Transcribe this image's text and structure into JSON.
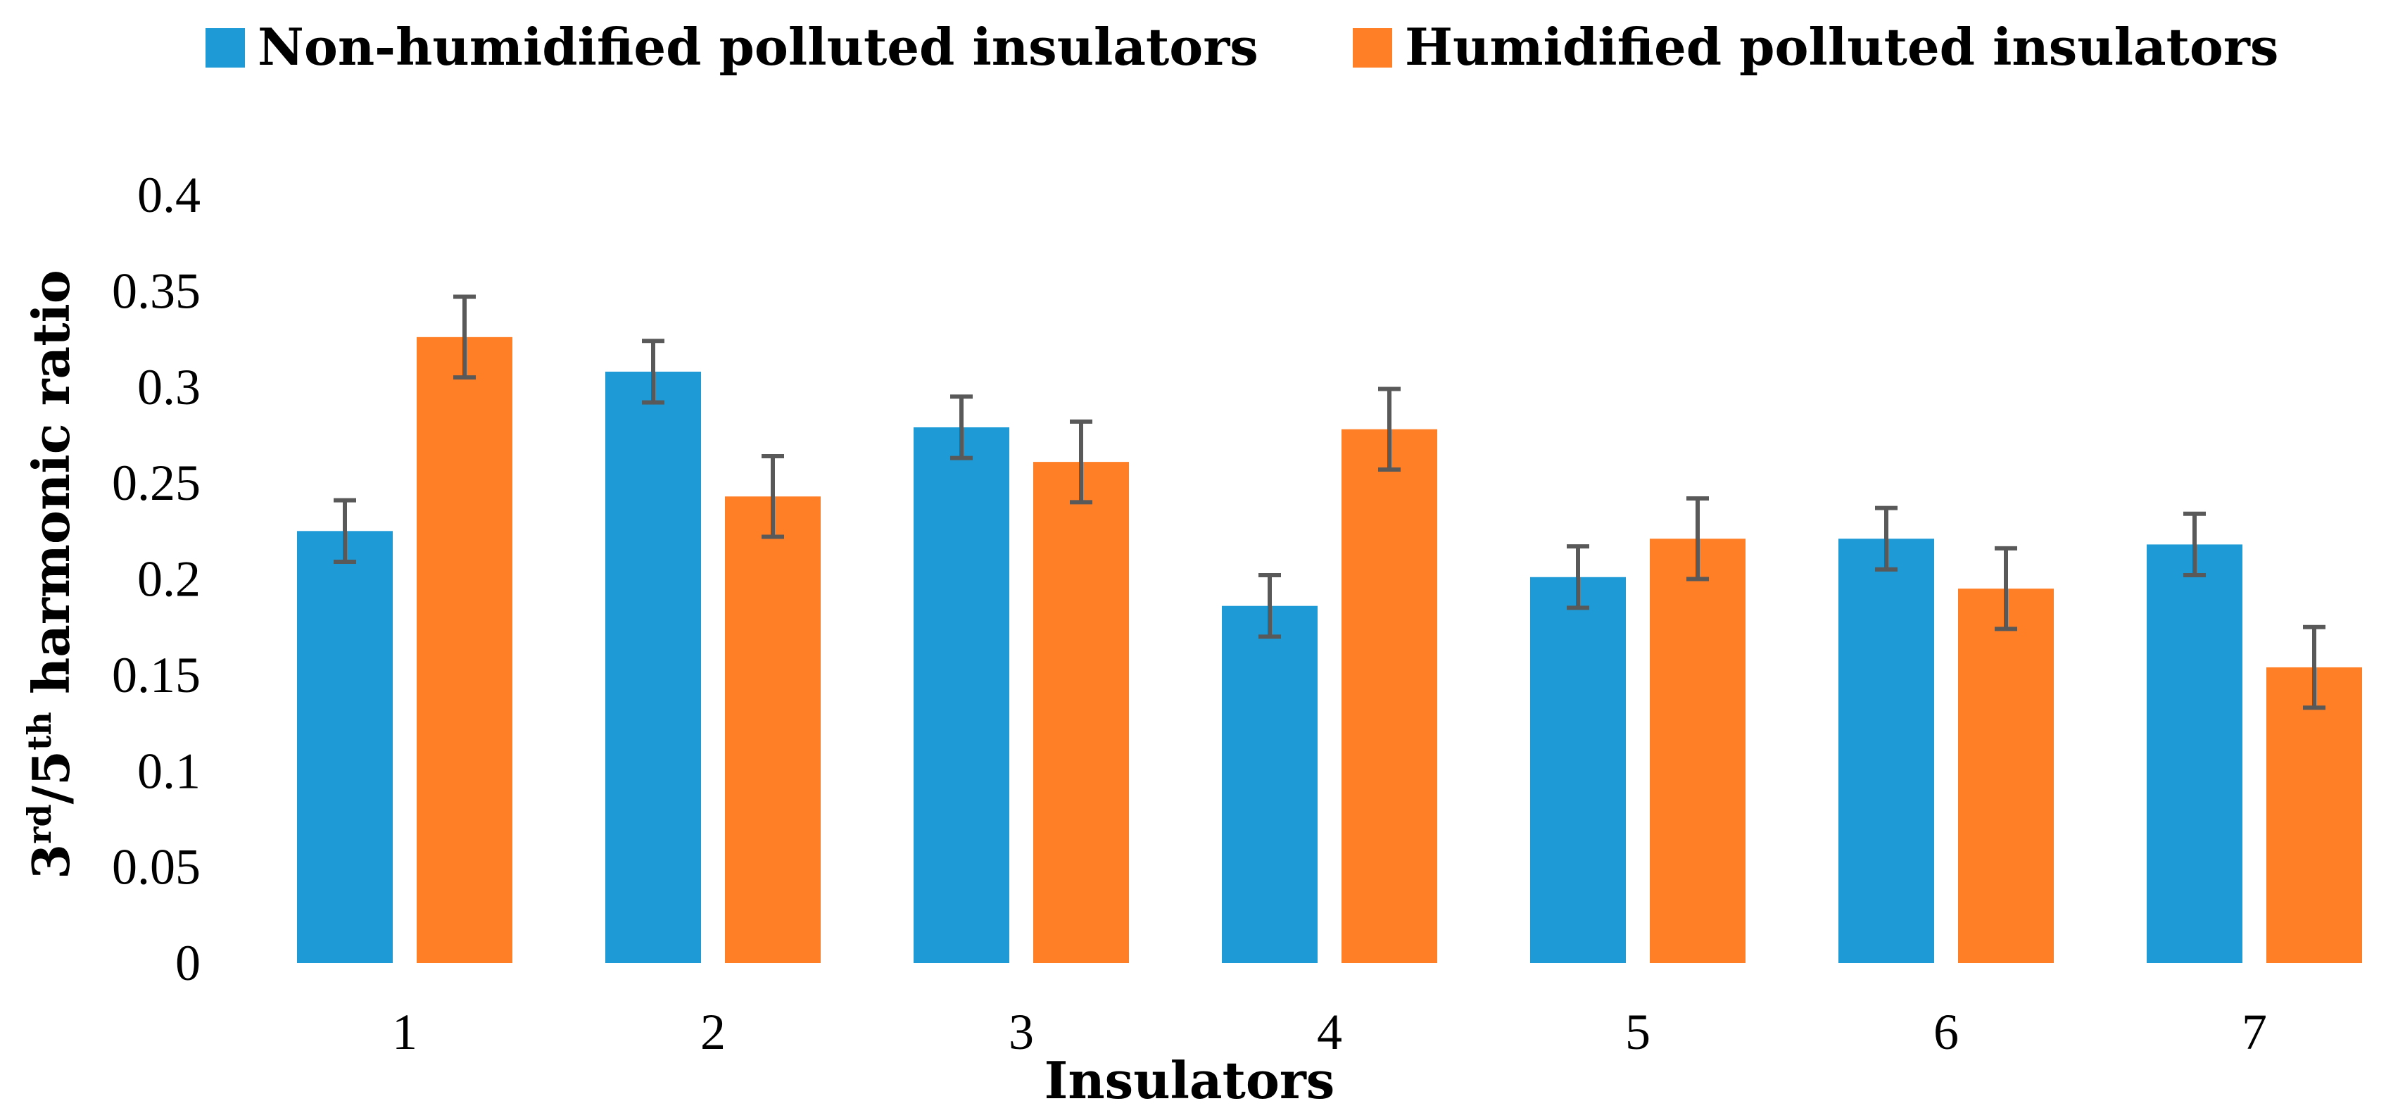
{
  "chart_data": {
    "type": "bar",
    "title": "",
    "xlabel": "Insulators",
    "ylabel": {
      "prefix": "3",
      "sup1": "rd",
      "middle": "/5",
      "sup2": "th",
      "suffix": " harmonic ratio"
    },
    "ylim": [
      0,
      0.4
    ],
    "yticks": [
      0,
      0.05,
      0.1,
      0.15,
      0.2,
      0.25,
      0.3,
      0.35,
      0.4
    ],
    "ytick_labels": [
      "0",
      "0.05",
      "0.1",
      "0.15",
      "0.2",
      "0.25",
      "0.3",
      "0.35",
      "0.4"
    ],
    "grid": false,
    "legend_position": "top-center",
    "categories": [
      "1",
      "2",
      "3",
      "4",
      "5",
      "6",
      "7"
    ],
    "series": [
      {
        "name": "Non-humidified polluted insulators",
        "color": "#1E9BD7",
        "values": [
          0.225,
          0.308,
          0.279,
          0.186,
          0.201,
          0.221,
          0.218
        ],
        "errors": [
          0.016,
          0.016,
          0.016,
          0.016,
          0.016,
          0.016,
          0.016
        ]
      },
      {
        "name": "Humidified polluted insulators",
        "color": "#FF7F27",
        "values": [
          0.326,
          0.243,
          0.261,
          0.278,
          0.221,
          0.195,
          0.154
        ],
        "errors": [
          0.021,
          0.021,
          0.021,
          0.021,
          0.021,
          0.021,
          0.021
        ]
      }
    ],
    "error_bar_color": "#595959"
  }
}
